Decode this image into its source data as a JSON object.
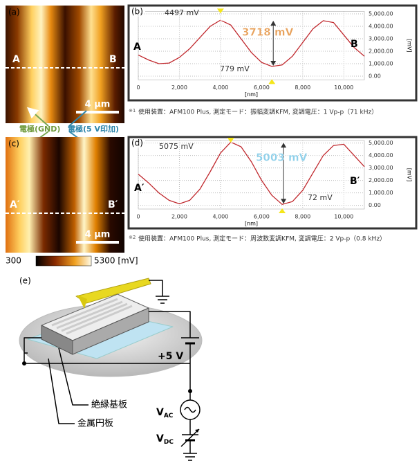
{
  "panels": {
    "a": "(a)",
    "b": "(b)",
    "c": "(c)",
    "d": "(d)",
    "e": "(e)"
  },
  "image_a": {
    "left": "A",
    "right": "B",
    "scale": "4 μm"
  },
  "image_c": {
    "left": "A′",
    "right": "B′",
    "scale": "4 μm"
  },
  "electrodes": {
    "gnd": "電極(GND)",
    "powered": "電極(5 V印加)"
  },
  "colorbar": {
    "min": "300",
    "max": "5300 [mV]"
  },
  "footnotes": [
    {
      "mark": "※1",
      "text": "使用装置：AFM100 Plus, 測定モード：振幅変調KFM, 変調電圧：1 Vp-p（71 kHz）"
    },
    {
      "mark": "※2",
      "text": "使用装置：AFM100 Plus, 測定モード：周波数変調KFM, 変調電圧：2 Vp-p（0.8 kHz）"
    }
  ],
  "chart_data": [
    {
      "type": "line",
      "x_label": "[nm]",
      "y_label": "[mV]",
      "x": [
        0,
        500,
        1000,
        1500,
        2000,
        2500,
        3000,
        3500,
        4000,
        4500,
        5000,
        5500,
        6000,
        6500,
        7000,
        7500,
        8000,
        8500,
        9000,
        9500,
        10000,
        10500,
        11000
      ],
      "series": [
        {
          "color": "#c0282d",
          "values": [
            1700,
            1300,
            1000,
            1050,
            1500,
            2200,
            3100,
            4000,
            4497,
            4100,
            3000,
            1900,
            1100,
            779,
            900,
            1600,
            2700,
            3800,
            4450,
            4300,
            3300,
            2300,
            1600
          ]
        }
      ],
      "xlim": [
        0,
        11000
      ],
      "ylim": [
        -300,
        5200
      ],
      "xticks": [
        0,
        {
          "value": 2000,
          "label": "2,000"
        },
        {
          "value": 4000,
          "label": "4,000"
        },
        {
          "value": 6000,
          "label": "6,000"
        },
        {
          "value": 8000,
          "label": "8,000"
        },
        {
          "value": 10000,
          "label": "10,000"
        }
      ],
      "yticks": [
        {
          "value": 0,
          "label": "0.00"
        },
        {
          "value": 1000,
          "label": "1,000.00"
        },
        {
          "value": 2000,
          "label": "2,000.00"
        },
        {
          "value": 3000,
          "label": "3,000.00"
        },
        {
          "value": 4000,
          "label": "4,000.00"
        },
        {
          "value": 5000,
          "label": "5,000.00"
        }
      ],
      "grid": true,
      "annotations": {
        "max": "4497 mV",
        "diff": "3718 mV",
        "min": "779 mV",
        "left": "A",
        "right": "B"
      }
    },
    {
      "type": "line",
      "x_label": "[nm]",
      "y_label": "[mV]",
      "x": [
        0,
        500,
        1000,
        1500,
        2000,
        2500,
        3000,
        3500,
        4000,
        4500,
        5000,
        5500,
        6000,
        6500,
        7000,
        7500,
        8000,
        8500,
        9000,
        9500,
        10000,
        10500,
        11000
      ],
      "series": [
        {
          "color": "#c0282d",
          "values": [
            2500,
            1800,
            1000,
            400,
            120,
            400,
            1300,
            2700,
            4200,
            5075,
            4700,
            3500,
            2000,
            800,
            72,
            300,
            1200,
            2600,
            4000,
            4800,
            4900,
            4000,
            3100
          ]
        }
      ],
      "xlim": [
        0,
        11000
      ],
      "ylim": [
        -300,
        5200
      ],
      "xticks": [
        0,
        {
          "value": 2000,
          "label": "2,000"
        },
        {
          "value": 4000,
          "label": "4,000"
        },
        {
          "value": 6000,
          "label": "6,000"
        },
        {
          "value": 8000,
          "label": "8,000"
        },
        {
          "value": 10000,
          "label": "10,000"
        }
      ],
      "yticks": [
        {
          "value": 0,
          "label": "0.00"
        },
        {
          "value": 1000,
          "label": "1,000.00"
        },
        {
          "value": 2000,
          "label": "2,000.00"
        },
        {
          "value": 3000,
          "label": "3,000.00"
        },
        {
          "value": 4000,
          "label": "4,000.00"
        },
        {
          "value": 5000,
          "label": "5,000.00"
        }
      ],
      "grid": true,
      "annotations": {
        "max": "5075 mV",
        "diff": "5003 mV",
        "min": "72 mV",
        "left": "A′",
        "right": "B′"
      }
    }
  ],
  "diagram": {
    "battery": "+5 V",
    "v_ac": {
      "main": "V",
      "sub": "AC"
    },
    "v_dc": {
      "main": "V",
      "sub": "DC"
    },
    "substrate": "絶縁基板",
    "disc": "金属円板"
  }
}
